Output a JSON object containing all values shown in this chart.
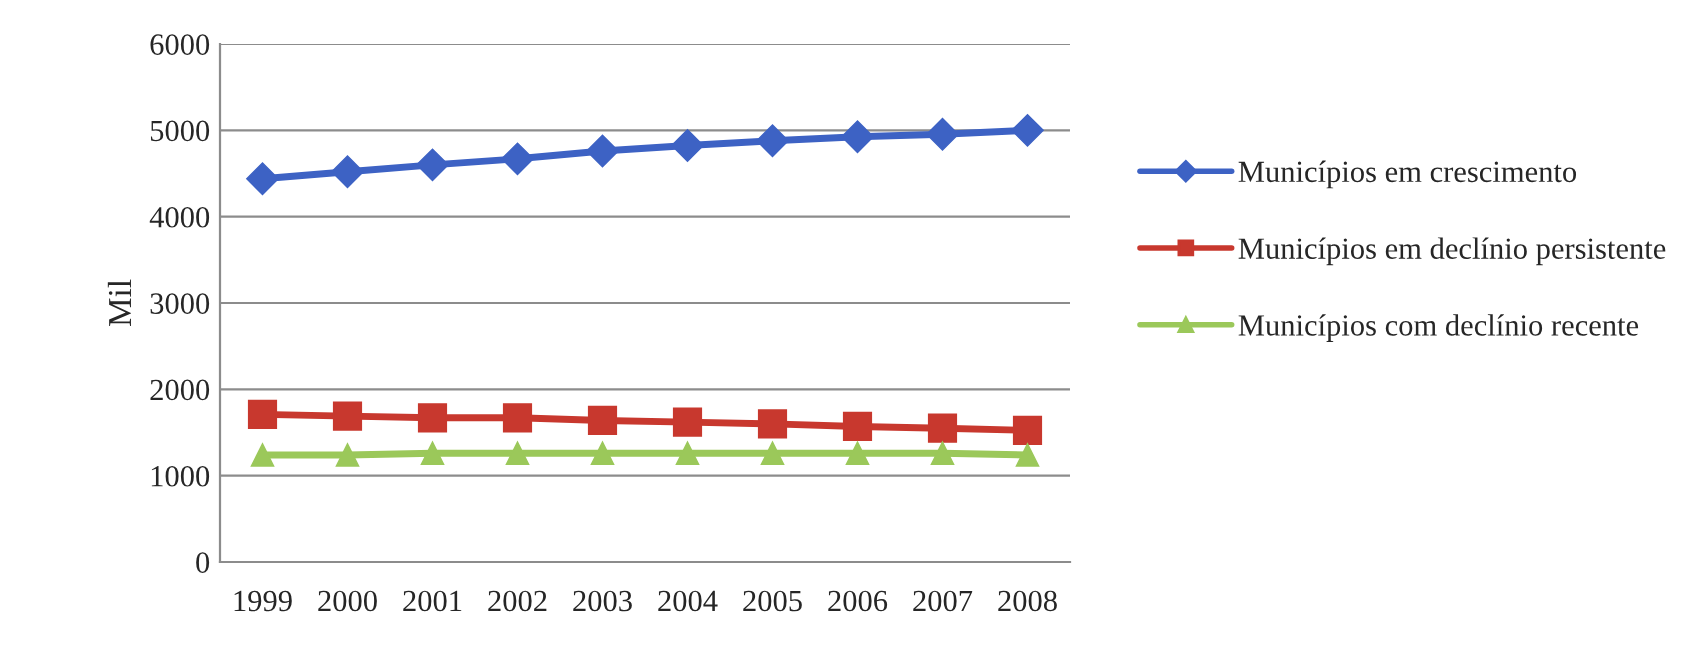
{
  "chart_data": {
    "type": "line",
    "ylabel": "Mil",
    "categories": [
      "1999",
      "2000",
      "2001",
      "2002",
      "2003",
      "2004",
      "2005",
      "2006",
      "2007",
      "2008"
    ],
    "series": [
      {
        "name": "Municípios em crescimento",
        "color": "#3d62c4",
        "marker": "diamond",
        "values": [
          4440,
          4520,
          4600,
          4670,
          4760,
          4825,
          4880,
          4925,
          4955,
          5000
        ]
      },
      {
        "name": "Municípios em declínio persistente",
        "color": "#c8382e",
        "marker": "square",
        "values": [
          1710,
          1690,
          1670,
          1670,
          1640,
          1620,
          1600,
          1570,
          1550,
          1525
        ]
      },
      {
        "name": "Municípios com declínio recente",
        "color": "#9bc85a",
        "marker": "triangle",
        "values": [
          1240,
          1240,
          1260,
          1260,
          1260,
          1260,
          1260,
          1260,
          1260,
          1240
        ]
      }
    ],
    "ylim": [
      0,
      6000
    ],
    "yticks": [
      0,
      1000,
      2000,
      3000,
      4000,
      5000,
      6000
    ],
    "grid": "y",
    "legend": "right",
    "line_style": "solid"
  }
}
